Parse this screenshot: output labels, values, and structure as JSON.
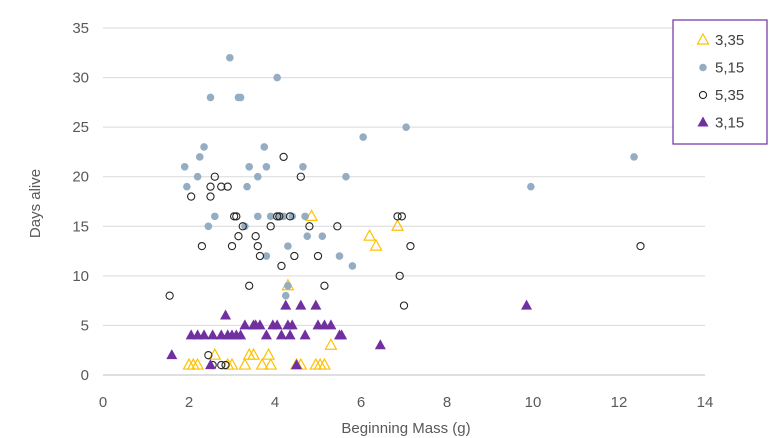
{
  "chart_data": {
    "type": "scatter",
    "title": "",
    "xlabel": "Beginning Mass (g)",
    "ylabel": "Days alive",
    "xlim": [
      0,
      14
    ],
    "ylim": [
      0,
      35
    ],
    "x_ticks": [
      "0",
      "2",
      "4",
      "6",
      "8",
      "10",
      "12",
      "14"
    ],
    "y_ticks": [
      "0",
      "5",
      "10",
      "15",
      "20",
      "25",
      "30",
      "35"
    ],
    "grid": "horizontal",
    "legend_position": "top-right",
    "series": [
      {
        "name": "3,35",
        "marker": "open-triangle",
        "color": "#FFC000",
        "points": [
          [
            2.0,
            1
          ],
          [
            2.1,
            1
          ],
          [
            2.2,
            1
          ],
          [
            2.6,
            2
          ],
          [
            2.9,
            1
          ],
          [
            3.0,
            1
          ],
          [
            3.3,
            1
          ],
          [
            3.4,
            2
          ],
          [
            3.5,
            2
          ],
          [
            3.7,
            1
          ],
          [
            3.9,
            1
          ],
          [
            3.85,
            2
          ],
          [
            4.3,
            9
          ],
          [
            4.5,
            1
          ],
          [
            4.6,
            1
          ],
          [
            4.85,
            16
          ],
          [
            4.95,
            1
          ],
          [
            5.05,
            1
          ],
          [
            5.15,
            1
          ],
          [
            5.3,
            3
          ],
          [
            6.2,
            14
          ],
          [
            6.35,
            13
          ],
          [
            6.85,
            15
          ]
        ]
      },
      {
        "name": "5,15",
        "marker": "filled-circle",
        "color": "#94ADC3",
        "points": [
          [
            1.9,
            21
          ],
          [
            1.95,
            19
          ],
          [
            2.2,
            20
          ],
          [
            2.25,
            22
          ],
          [
            2.35,
            23
          ],
          [
            2.45,
            15
          ],
          [
            2.5,
            28
          ],
          [
            2.6,
            16
          ],
          [
            2.95,
            32
          ],
          [
            3.15,
            28
          ],
          [
            3.2,
            28
          ],
          [
            3.3,
            15
          ],
          [
            3.35,
            19
          ],
          [
            3.4,
            21
          ],
          [
            3.6,
            20
          ],
          [
            3.6,
            16
          ],
          [
            3.75,
            23
          ],
          [
            3.8,
            21
          ],
          [
            3.8,
            12
          ],
          [
            3.9,
            16
          ],
          [
            4.05,
            30
          ],
          [
            4.1,
            16
          ],
          [
            4.2,
            16
          ],
          [
            4.25,
            8
          ],
          [
            4.3,
            13
          ],
          [
            4.3,
            9
          ],
          [
            4.4,
            16
          ],
          [
            4.65,
            21
          ],
          [
            4.7,
            16
          ],
          [
            4.75,
            14
          ],
          [
            5.1,
            14
          ],
          [
            5.5,
            12
          ],
          [
            5.65,
            20
          ],
          [
            5.8,
            11
          ],
          [
            6.05,
            24
          ],
          [
            7.05,
            25
          ],
          [
            9.95,
            19
          ],
          [
            12.35,
            22
          ]
        ]
      },
      {
        "name": "5,35",
        "marker": "open-circle",
        "color": "#262626",
        "points": [
          [
            1.55,
            8
          ],
          [
            2.05,
            18
          ],
          [
            2.3,
            13
          ],
          [
            2.45,
            2
          ],
          [
            2.5,
            19
          ],
          [
            2.5,
            18
          ],
          [
            2.55,
            1
          ],
          [
            2.6,
            20
          ],
          [
            2.75,
            19
          ],
          [
            2.75,
            1
          ],
          [
            2.9,
            19
          ],
          [
            2.85,
            1
          ],
          [
            3.0,
            13
          ],
          [
            3.05,
            16
          ],
          [
            3.1,
            16
          ],
          [
            3.15,
            14
          ],
          [
            3.25,
            15
          ],
          [
            3.4,
            9
          ],
          [
            3.55,
            14
          ],
          [
            3.6,
            13
          ],
          [
            3.65,
            12
          ],
          [
            3.9,
            15
          ],
          [
            4.05,
            16
          ],
          [
            4.1,
            16
          ],
          [
            4.15,
            11
          ],
          [
            4.2,
            22
          ],
          [
            4.35,
            16
          ],
          [
            4.45,
            12
          ],
          [
            4.6,
            20
          ],
          [
            4.8,
            15
          ],
          [
            5.0,
            12
          ],
          [
            5.15,
            9
          ],
          [
            5.45,
            15
          ],
          [
            6.85,
            16
          ],
          [
            6.9,
            10
          ],
          [
            6.95,
            16
          ],
          [
            7.0,
            7
          ],
          [
            7.15,
            13
          ],
          [
            12.5,
            13
          ]
        ]
      },
      {
        "name": "3,15",
        "marker": "filled-triangle",
        "color": "#7030A0",
        "points": [
          [
            1.6,
            2
          ],
          [
            2.05,
            4
          ],
          [
            2.2,
            4
          ],
          [
            2.35,
            4
          ],
          [
            2.5,
            1
          ],
          [
            2.55,
            4
          ],
          [
            2.75,
            4
          ],
          [
            2.85,
            6
          ],
          [
            2.9,
            4
          ],
          [
            3.0,
            4
          ],
          [
            3.1,
            4
          ],
          [
            3.2,
            4
          ],
          [
            3.3,
            5
          ],
          [
            3.5,
            5
          ],
          [
            3.55,
            5
          ],
          [
            3.65,
            5
          ],
          [
            3.8,
            4
          ],
          [
            3.95,
            5
          ],
          [
            4.05,
            5
          ],
          [
            4.15,
            4
          ],
          [
            4.25,
            7
          ],
          [
            4.3,
            5
          ],
          [
            4.35,
            4
          ],
          [
            4.4,
            5
          ],
          [
            4.5,
            1
          ],
          [
            4.6,
            7
          ],
          [
            4.7,
            4
          ],
          [
            4.95,
            7
          ],
          [
            5.0,
            5
          ],
          [
            5.15,
            5
          ],
          [
            5.3,
            5
          ],
          [
            5.5,
            4
          ],
          [
            5.55,
            4
          ],
          [
            6.45,
            3
          ],
          [
            9.85,
            7
          ]
        ]
      }
    ]
  }
}
